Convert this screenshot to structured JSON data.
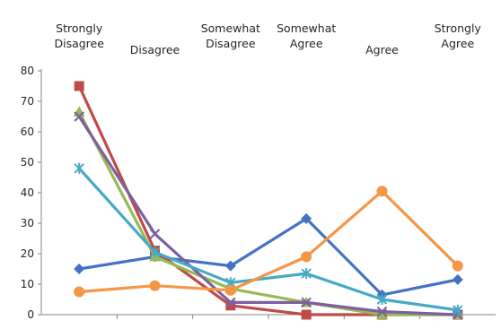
{
  "chart_data": {
    "type": "line",
    "categories": [
      [
        "Strongly",
        "Disagree"
      ],
      [
        "Disagree"
      ],
      [
        "Somewhat",
        "Disagree"
      ],
      [
        "Somewhat",
        "Agree"
      ],
      [
        "Agree"
      ],
      [
        "Strongly",
        "Agree"
      ]
    ],
    "ylim": [
      0,
      80
    ],
    "yticks": [
      0,
      10,
      20,
      30,
      40,
      50,
      60,
      70,
      80
    ],
    "grid": false,
    "series": [
      {
        "color": "#4472C4",
        "marker": "diamond",
        "values": [
          15,
          19,
          16,
          31.5,
          6.5,
          11.5
        ]
      },
      {
        "color": "#BE4B48",
        "marker": "square",
        "values": [
          75,
          21,
          3,
          0,
          0,
          0
        ]
      },
      {
        "color": "#98B954",
        "marker": "triangle",
        "values": [
          66.5,
          19,
          8.5,
          4,
          0,
          0
        ]
      },
      {
        "color": "#7D60A0",
        "marker": "x",
        "values": [
          65,
          26.5,
          4,
          4,
          1,
          0
        ]
      },
      {
        "color": "#46AAC5",
        "marker": "asterisk",
        "values": [
          48,
          20.5,
          10.5,
          13.5,
          5,
          1.5
        ]
      },
      {
        "color": "#F59646",
        "marker": "circle",
        "values": [
          7.5,
          9.5,
          8,
          19,
          40.5,
          16
        ]
      }
    ]
  }
}
